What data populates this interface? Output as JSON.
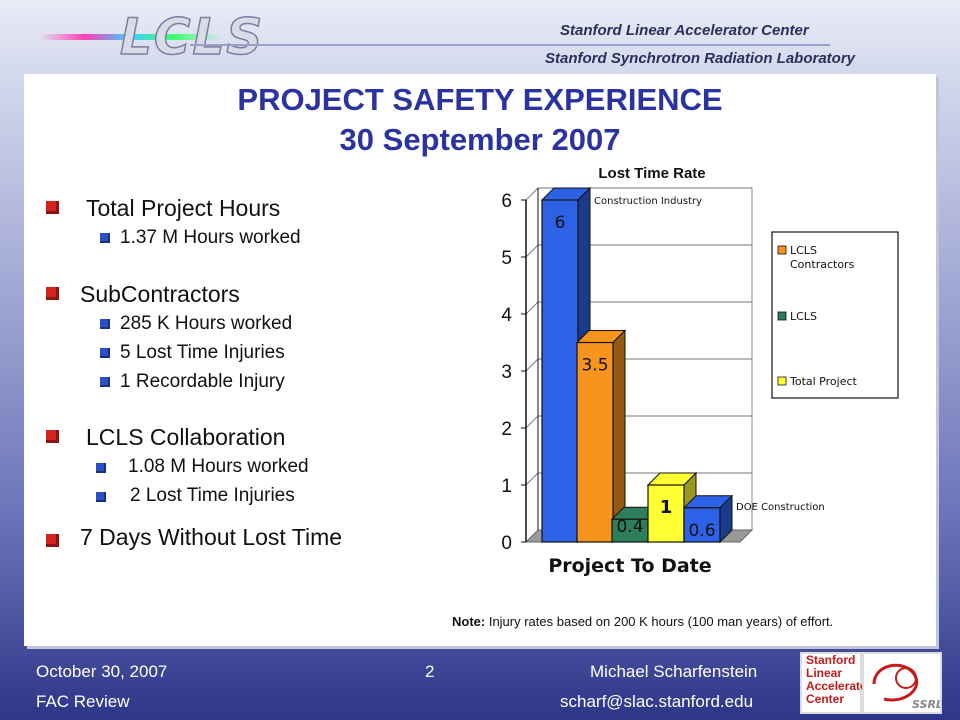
{
  "header": {
    "logo_text": "LCLS",
    "org1": "Stanford Linear Accelerator Center",
    "org2": "Stanford Synchrotron Radiation Laboratory"
  },
  "title": {
    "line1": "PROJECT SAFETY EXPERIENCE",
    "line2": "30 September 2007"
  },
  "bullets": {
    "total": {
      "label": "Total Project Hours",
      "items": [
        "1.37 M Hours worked"
      ]
    },
    "subs": {
      "label": "SubContractors",
      "items": [
        "285 K Hours worked",
        "5 Lost Time Injuries",
        "1 Recordable Injury"
      ]
    },
    "collab": {
      "label": "LCLS Collaboration",
      "items": [
        "1.08 M Hours worked",
        "2 Lost Time Injuries"
      ]
    },
    "days": "7 Days Without Lost Time"
  },
  "chart_data": {
    "type": "bar",
    "title": "Lost Time Rate",
    "xlabel": "Project To Date",
    "ylabel": "",
    "ylim": [
      0,
      6
    ],
    "yticks": [
      "0",
      "1",
      "2",
      "3",
      "4",
      "5",
      "6"
    ],
    "bars": [
      {
        "value": 6,
        "label": "6",
        "color": "#2e62e6",
        "annotation": "Construction Industry"
      },
      {
        "value": 3.5,
        "label": "3.5",
        "color": "#f7941d",
        "annotation": ""
      },
      {
        "value": 0.4,
        "label": "0.4",
        "color": "#2e7d5b",
        "annotation": ""
      },
      {
        "value": 1,
        "label": "1",
        "color": "#ffff33",
        "annotation": ""
      },
      {
        "value": 0.6,
        "label": "0.6",
        "color": "#2e62e6",
        "annotation": "DOE Construction"
      }
    ],
    "legend": {
      "placement": "right",
      "entries": [
        {
          "name": "LCLS Contractors",
          "lines": [
            "LCLS",
            "Contractors"
          ],
          "color": "#f7941d"
        },
        {
          "name": "LCLS",
          "lines": [
            "LCLS"
          ],
          "color": "#2e7d5b"
        },
        {
          "name": "Total Project",
          "lines": [
            "Total Project"
          ],
          "color": "#ffff33"
        }
      ]
    }
  },
  "note": {
    "label": "Note:",
    "text": " Injury rates based on 200 K hours (100 man years) of effort."
  },
  "footer": {
    "date": "October 30, 2007",
    "event": "FAC Review",
    "page": "2",
    "name": "Michael Scharfenstein",
    "email": "scharf@slac.stanford.edu",
    "slac_logo": [
      "Stanford",
      "Linear",
      "Accelerator",
      "Center"
    ],
    "ssrl_logo": "SSRL"
  }
}
